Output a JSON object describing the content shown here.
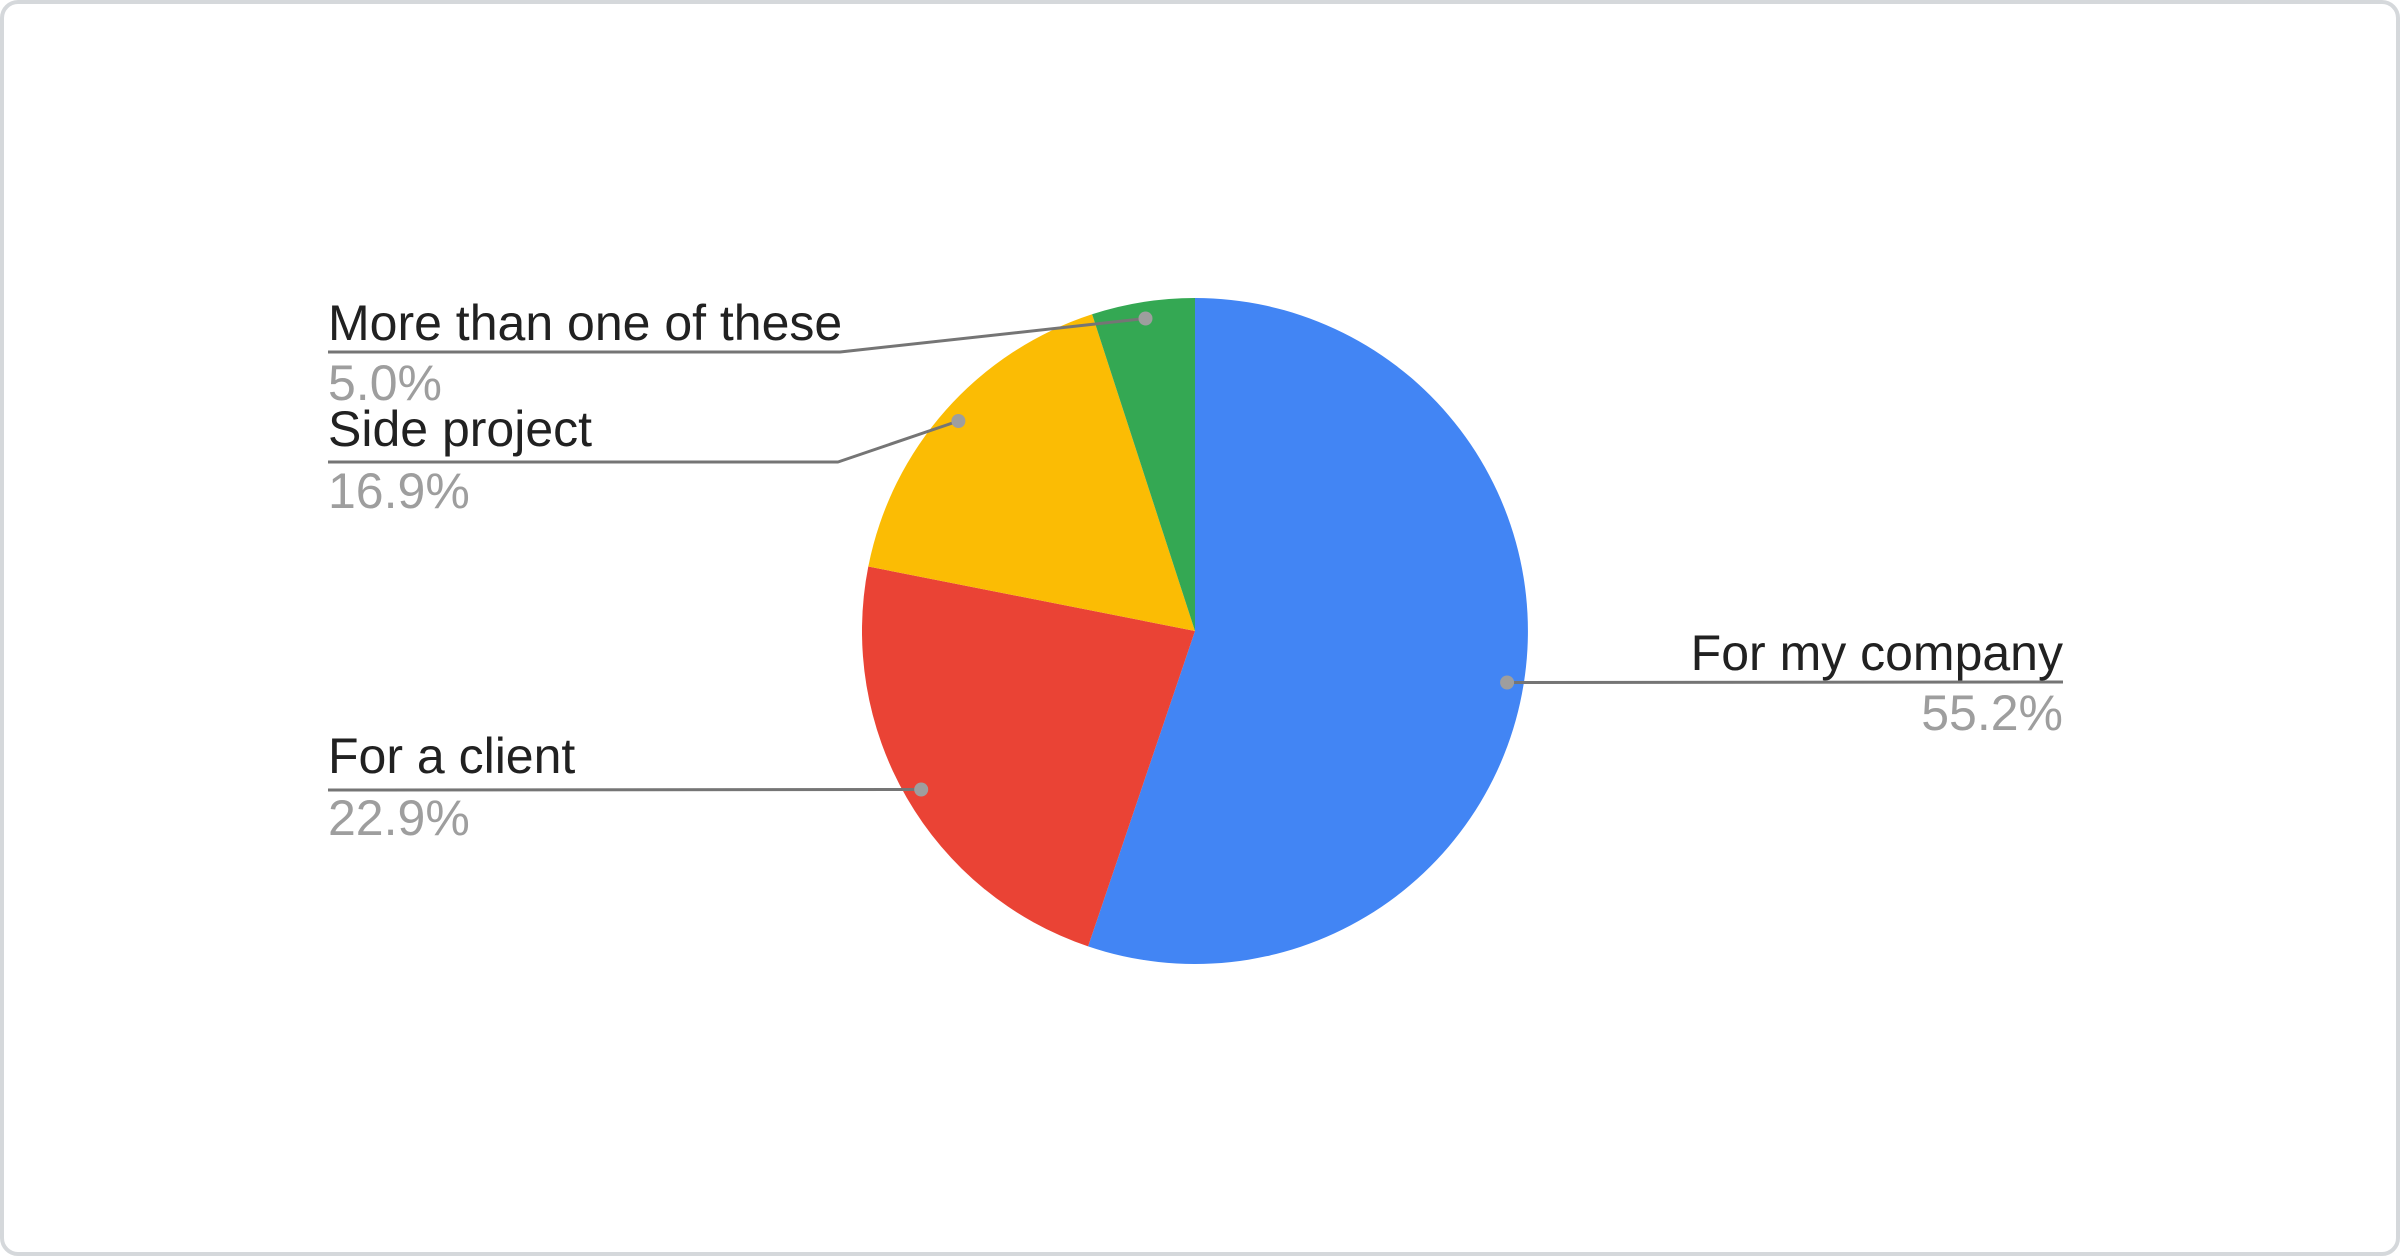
{
  "window": {
    "background": "#ffffff",
    "card_border_color": "#d5d8db"
  },
  "chart_data": {
    "type": "pie",
    "title": "",
    "categories": [
      "For my company",
      "For a client",
      "Side project",
      "More than one of these"
    ],
    "values": [
      55.2,
      22.9,
      16.9,
      5.0
    ],
    "percent_labels": [
      "55.2%",
      "22.9%",
      "16.9%",
      "5.0%"
    ],
    "colors": [
      "#4285f4",
      "#ea4335",
      "#fbbc04",
      "#34a853"
    ],
    "start_angle_deg": 0,
    "direction": "clockwise",
    "label_color": "#212121",
    "percent_color": "#9e9e9e",
    "leader_line_color": "#757575",
    "leader_dot_color": "#9e9e9e",
    "legend_position": "outside-callouts",
    "grid": false
  }
}
